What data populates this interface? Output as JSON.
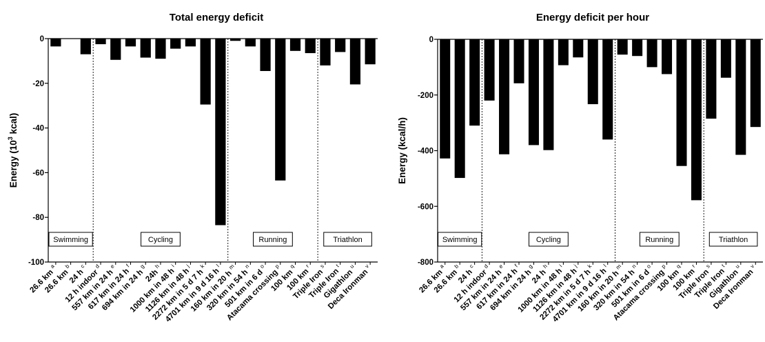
{
  "chart_data": [
    {
      "type": "bar",
      "title": "Total energy deficit",
      "ylabel_parts": [
        "Energy (10",
        "3",
        " kcal)"
      ],
      "ylim": [
        -100,
        0
      ],
      "yticks": [
        "0",
        "-20",
        "-40",
        "-60",
        "-80",
        "-100"
      ],
      "categories": [
        "26.6 km",
        "26.6 km",
        "24 h",
        "12 h indoor",
        "557 km in 24 h",
        "617 km in 24 h",
        "694 km in 24 h",
        "24h",
        "1000 km in 48 h",
        "1126 km in 48 h",
        "2272 km in 5 d 7 h",
        "4701 km in 9 d 16 h",
        "160 km in 20 h",
        "320 km in 54 h",
        "501 km in 6 d",
        "Atacama crossing",
        "100 km",
        "100 km",
        "Triple Iron",
        "Triple Iron",
        "Gigathlon",
        "Deca Ironman"
      ],
      "superscripts": [
        "a",
        "b",
        "c",
        "d",
        "e",
        "f",
        "g",
        "h",
        "i",
        "j",
        "k",
        "l",
        "m",
        "n",
        "o",
        "p",
        "q",
        "r",
        "s",
        "t",
        "u",
        "v"
      ],
      "values": [
        -3.5,
        0,
        -7,
        -2.5,
        -9.5,
        -3.5,
        -8.5,
        -9,
        -4.5,
        -3.5,
        -29.5,
        -83.5,
        -1,
        -3.5,
        -14.5,
        -63.5,
        -5.5,
        -6.5,
        -12,
        -6,
        -20.5,
        -11.5
      ],
      "groups": [
        {
          "name": "Swimming",
          "start": 0,
          "end": 2
        },
        {
          "name": "Cycling",
          "start": 3,
          "end": 11
        },
        {
          "name": "Running",
          "start": 12,
          "end": 17
        },
        {
          "name": "Triathlon",
          "start": 18,
          "end": 21
        }
      ],
      "bar_color": "#000000",
      "grid": false
    },
    {
      "type": "bar",
      "title": "Energy deficit per hour",
      "ylabel": "Energy (kcal/h)",
      "ylim": [
        -800,
        0
      ],
      "yticks": [
        "0",
        "-200",
        "-400",
        "-600",
        "-800"
      ],
      "categories": [
        "26.6 km",
        "26.6 km",
        "24 h",
        "12 h indoor",
        "557 km in 24 h",
        "617 km in 24 h",
        "694 km in 24 h",
        "24 h",
        "1000 km in 48 h",
        "1126 km in 48 h",
        "2272 km in 5 d 7 h",
        "4701 km in 9 d 16 h",
        "160 km in 20 h",
        "320 km in 54 h",
        "501 km in 6 d",
        "Atacama crossing",
        "100 km",
        "100 km",
        "Triple Iron",
        "Triple Iron",
        "Gigathlon",
        "Deca Ironman"
      ],
      "superscripts": [
        "a",
        "b",
        "c",
        "d",
        "e",
        "f",
        "g",
        "h",
        "i",
        "j",
        "k",
        "l",
        "m",
        "n",
        "o",
        "p",
        "q",
        "r",
        "s",
        "t",
        "u",
        "v"
      ],
      "values": [
        -428,
        -498,
        -310,
        -220,
        -413,
        -158,
        -380,
        -398,
        -93,
        -65,
        -233,
        -360,
        -55,
        -60,
        -100,
        -125,
        -455,
        -578,
        -285,
        -138,
        -415,
        -315
      ],
      "groups": [
        {
          "name": "Swimming",
          "start": 0,
          "end": 2
        },
        {
          "name": "Cycling",
          "start": 3,
          "end": 11
        },
        {
          "name": "Running",
          "start": 12,
          "end": 17
        },
        {
          "name": "Triathlon",
          "start": 18,
          "end": 21
        }
      ],
      "bar_color": "#000000",
      "grid": false
    }
  ]
}
